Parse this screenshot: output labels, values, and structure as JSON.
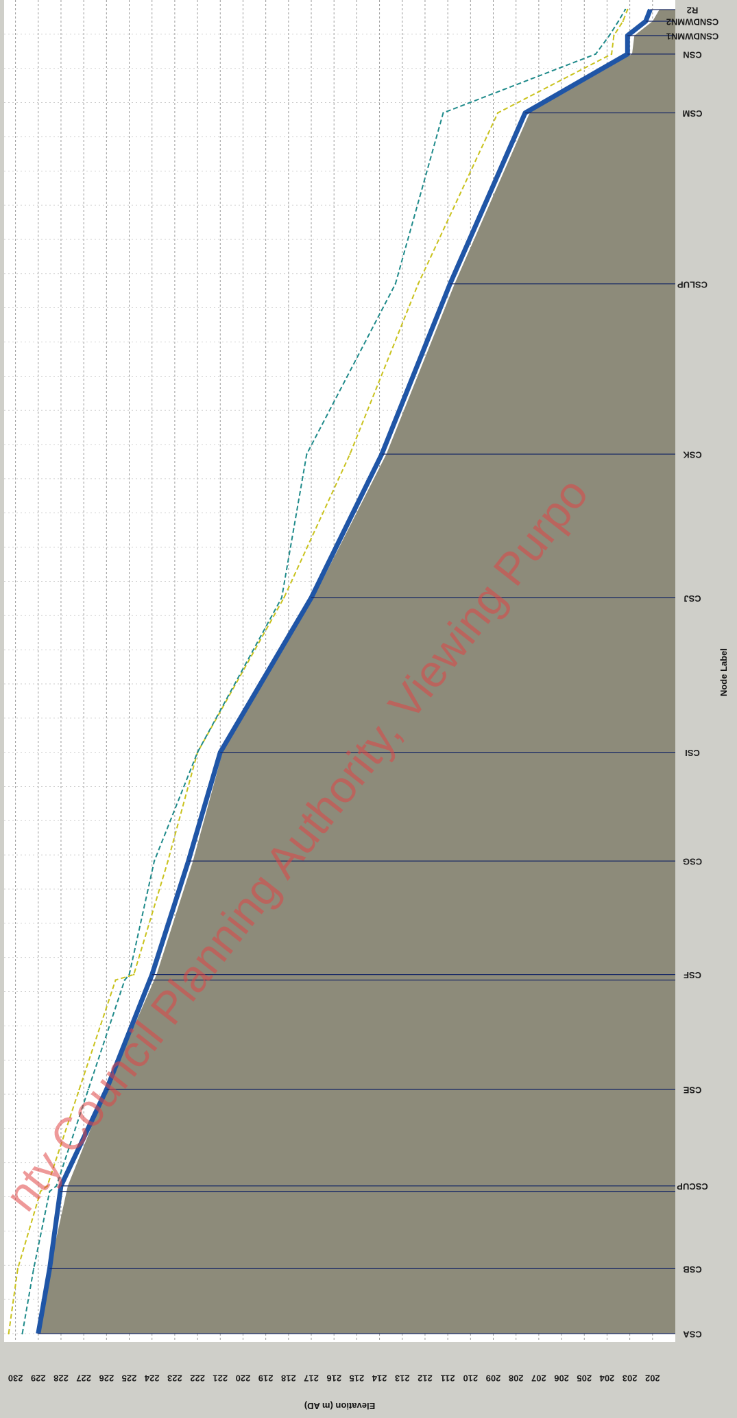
{
  "chart_data": {
    "type": "area",
    "title": "",
    "xlabel": "Elevation (m AD)",
    "ylabel": "Node Label",
    "orientation": "rotated-90",
    "elevation_range": [
      201,
      230.5
    ],
    "elevation_ticks": [
      202,
      203,
      204,
      205,
      206,
      207,
      208,
      209,
      210,
      211,
      212,
      213,
      214,
      215,
      216,
      217,
      218,
      219,
      220,
      221,
      222,
      223,
      224,
      225,
      226,
      227,
      228,
      229,
      230
    ],
    "nodes": [
      {
        "label": "CSA",
        "chainage": 0
      },
      {
        "label": "CSB",
        "chainage": 95
      },
      {
        "label": "CSCUP",
        "chainage": 216
      },
      {
        "label": "CSE",
        "chainage": 357
      },
      {
        "label": "CSF",
        "chainage": 525
      },
      {
        "label": "CSG",
        "chainage": 691
      },
      {
        "label": "CSI",
        "chainage": 850
      },
      {
        "label": "CSJ",
        "chainage": 1076
      },
      {
        "label": "CSK",
        "chainage": 1286
      },
      {
        "label": "CSLUP",
        "chainage": 1535
      },
      {
        "label": "CSM",
        "chainage": 1785
      },
      {
        "label": "CSN",
        "chainage": 1871
      },
      {
        "label": "CSNDWMN1",
        "chainage": 1898
      },
      {
        "label": "CSNDWMN2",
        "chainage": 1919
      },
      {
        "label": "R2",
        "chainage": 1936
      }
    ],
    "section_lines": [
      0,
      95,
      208,
      216,
      357,
      517,
      525,
      691,
      850,
      1076,
      1286,
      1535,
      1785,
      1871,
      1898,
      1919,
      1936
    ],
    "series": [
      {
        "kind": "ground",
        "color": "#8d8b7a",
        "points": [
          [
            0,
            229.0
          ],
          [
            95,
            228.5
          ],
          [
            216,
            227.7
          ],
          [
            357,
            226.0
          ],
          [
            525,
            223.8
          ],
          [
            691,
            222.2
          ],
          [
            850,
            220.9
          ],
          [
            1076,
            216.9
          ],
          [
            1286,
            213.7
          ],
          [
            1535,
            210.7
          ],
          [
            1785,
            207.4
          ],
          [
            1871,
            202.9
          ],
          [
            1898,
            202.8
          ],
          [
            1919,
            202.0
          ],
          [
            1936,
            201.7
          ]
        ]
      },
      {
        "kind": "pipe-invert",
        "color": "#1f55a6",
        "points": [
          [
            0,
            229.0
          ],
          [
            95,
            228.5
          ],
          [
            216,
            228.0
          ],
          [
            357,
            226.0
          ],
          [
            525,
            224.0
          ],
          [
            691,
            222.4
          ],
          [
            850,
            221.0
          ],
          [
            1076,
            217.0
          ],
          [
            1286,
            213.9
          ],
          [
            1535,
            210.9
          ],
          [
            1785,
            207.6
          ],
          [
            1871,
            203.1
          ],
          [
            1898,
            203.1
          ],
          [
            1919,
            202.3
          ],
          [
            1936,
            202.1
          ]
        ]
      },
      {
        "kind": "level",
        "color": "#c9c21c",
        "points": [
          [
            0,
            230.3
          ],
          [
            95,
            229.9
          ],
          [
            208,
            228.9
          ],
          [
            216,
            228.6
          ],
          [
            357,
            227.2
          ],
          [
            517,
            225.6
          ],
          [
            525,
            224.8
          ],
          [
            691,
            223.3
          ],
          [
            850,
            222.0
          ],
          [
            1076,
            218.2
          ],
          [
            1286,
            215.3
          ],
          [
            1535,
            212.3
          ],
          [
            1785,
            208.8
          ],
          [
            1871,
            203.8
          ],
          [
            1898,
            203.7
          ],
          [
            1919,
            203.3
          ],
          [
            1936,
            203.1
          ]
        ]
      },
      {
        "kind": "level",
        "color": "#1e8a8a",
        "points": [
          [
            0,
            229.7
          ],
          [
            95,
            229.2
          ],
          [
            208,
            228.5
          ],
          [
            216,
            228.2
          ],
          [
            357,
            226.8
          ],
          [
            517,
            225.2
          ],
          [
            525,
            225.0
          ],
          [
            691,
            223.9
          ],
          [
            850,
            222.0
          ],
          [
            1076,
            218.3
          ],
          [
            1286,
            217.2
          ],
          [
            1535,
            213.3
          ],
          [
            1785,
            211.2
          ],
          [
            1871,
            204.5
          ],
          [
            1898,
            203.9
          ],
          [
            1919,
            203.5
          ],
          [
            1936,
            203.2
          ]
        ]
      }
    ],
    "watermark": "nty Council Planning Authority, Viewing Purpo",
    "grid": true,
    "legend": "none"
  }
}
